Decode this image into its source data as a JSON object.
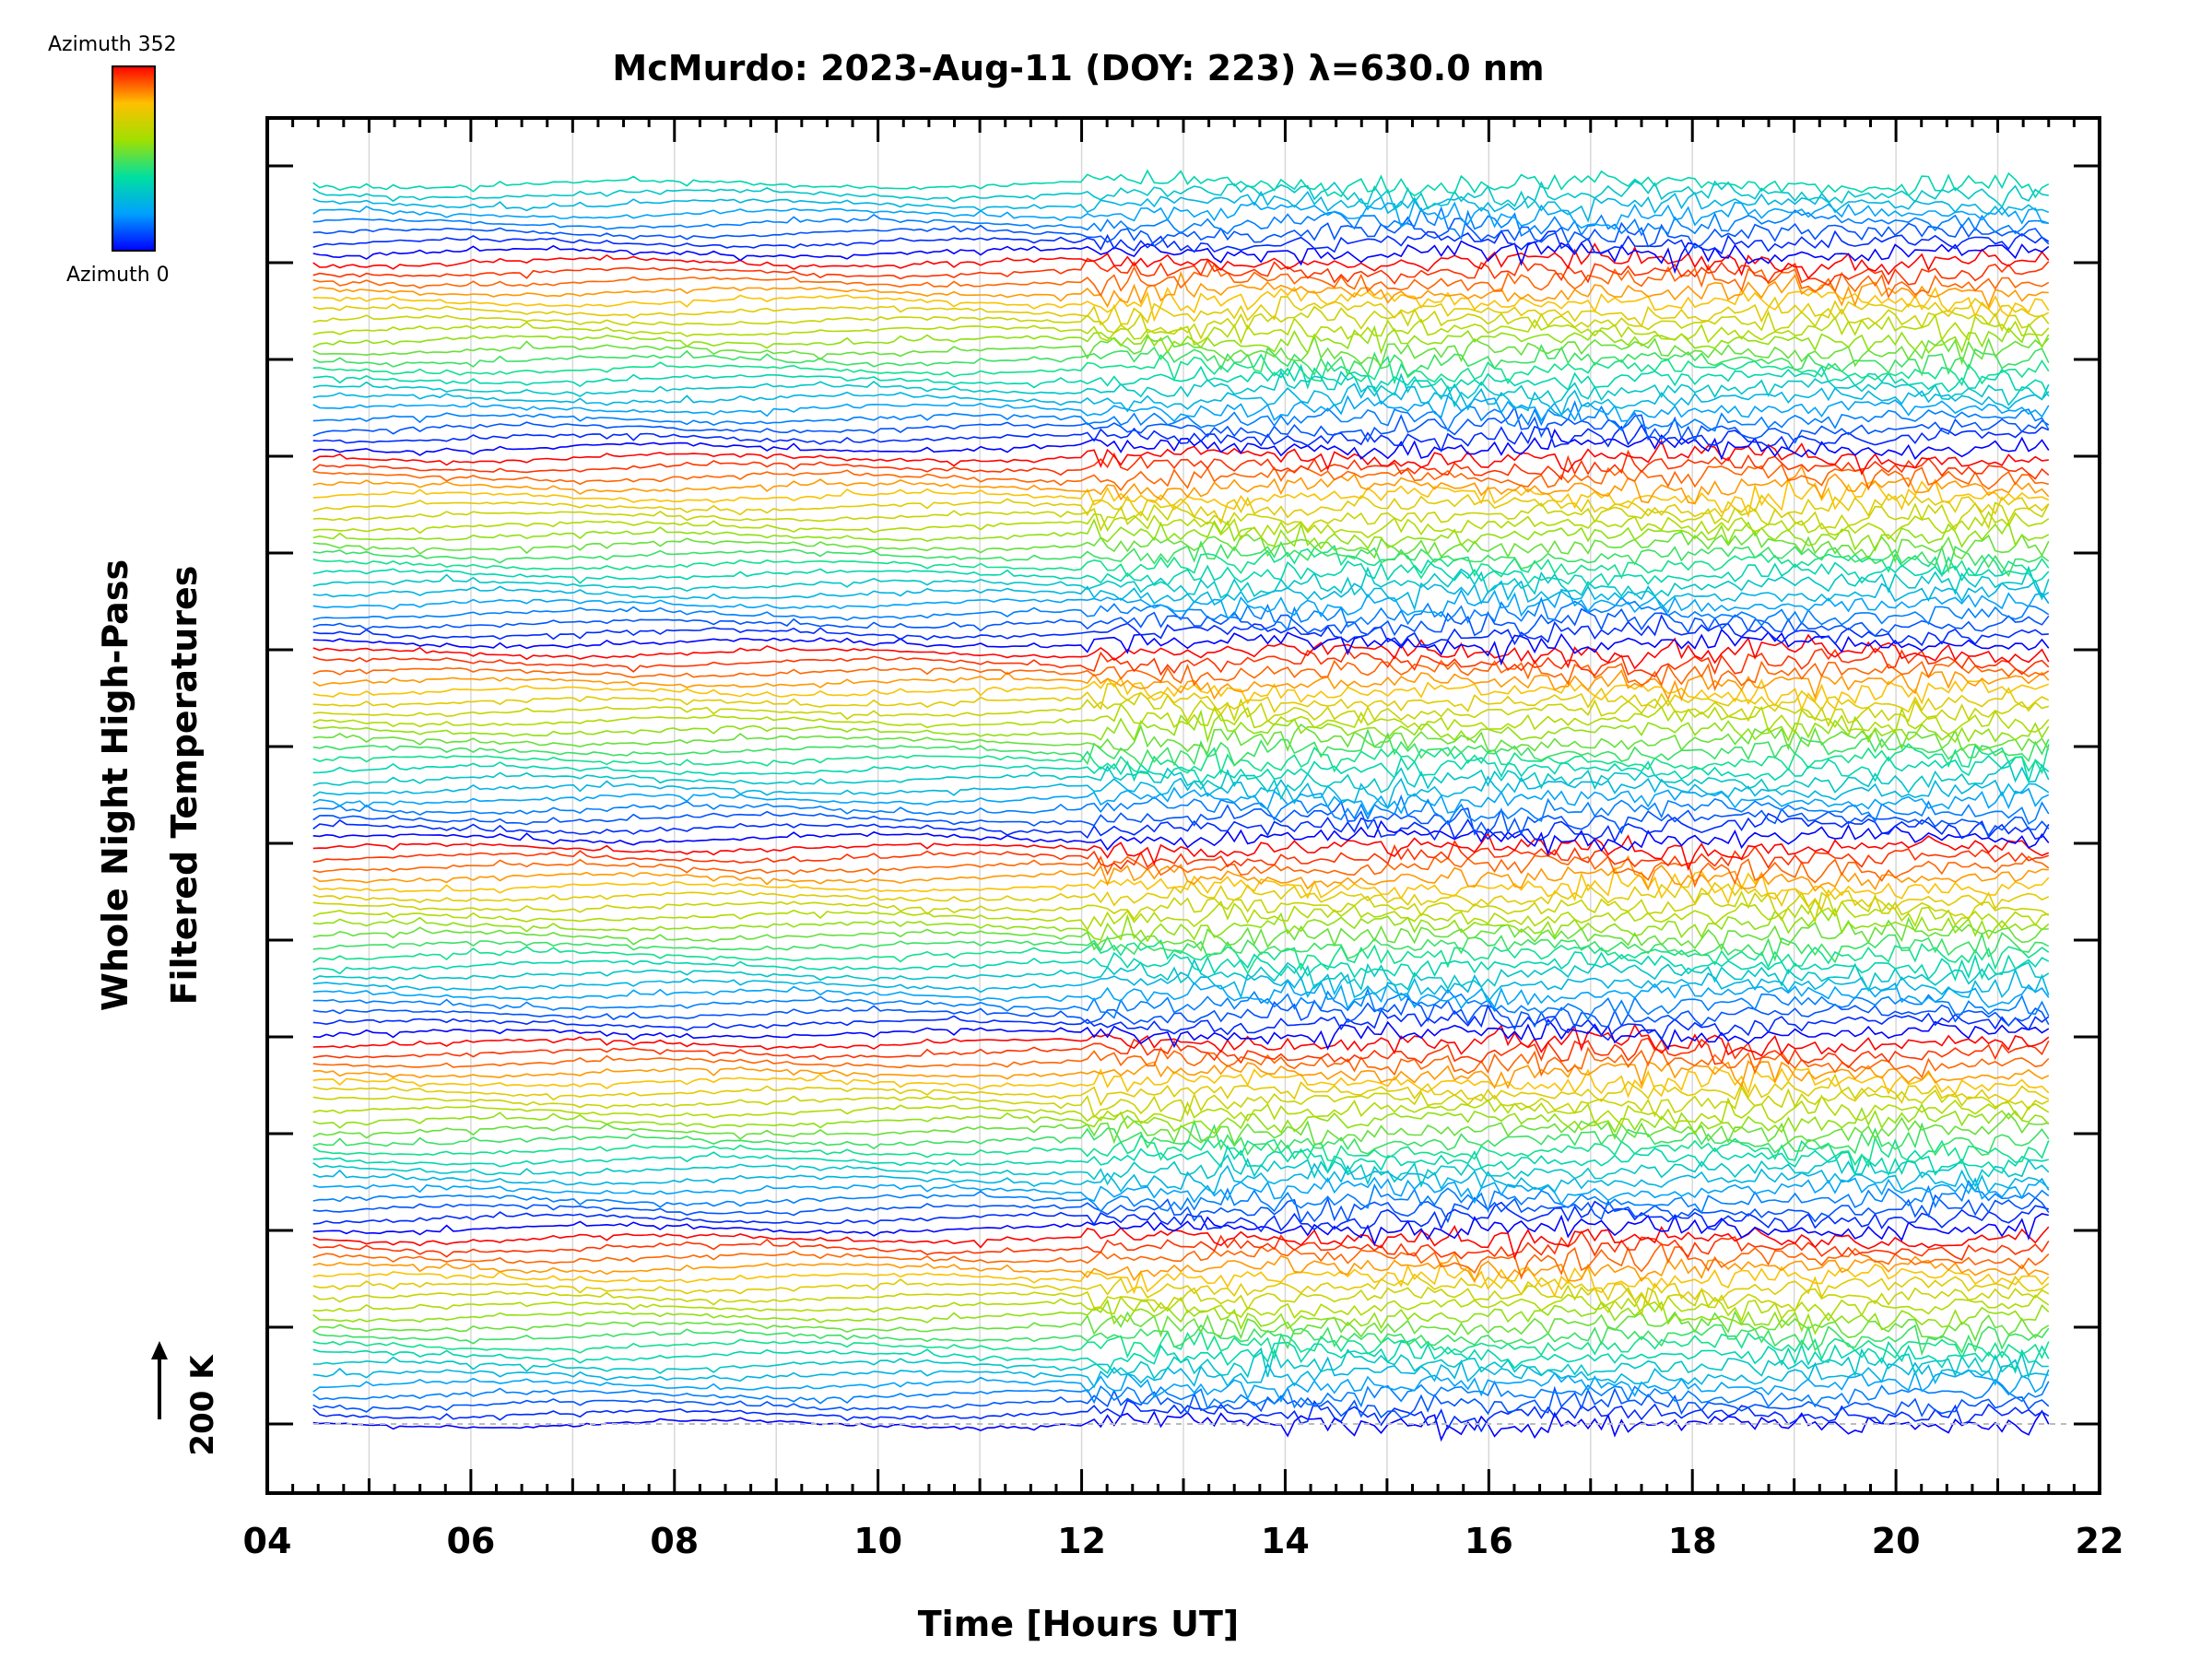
{
  "chart_data": {
    "type": "line",
    "title": "McMurdo: 2023-Aug-11 (DOY: 223) λ=630.0 nm",
    "xlabel": "Time [Hours UT]",
    "ylabel_line1": "Whole Night High-Pass",
    "ylabel_line2": "Filtered Temperatures",
    "scale_label": "200 K",
    "xlim": [
      4,
      22
    ],
    "x_ticks": [
      "04",
      "06",
      "08",
      "10",
      "12",
      "14",
      "16",
      "18",
      "20",
      "22"
    ],
    "x_tick_values": [
      4,
      6,
      8,
      10,
      12,
      14,
      16,
      18,
      20,
      22
    ],
    "data_time_range": [
      4.45,
      21.5
    ],
    "n_traces": 128,
    "traces_per_azimuth_cycle": 20,
    "offset_between_traces": "stacked (offset ~ 200 K per major tick marker)",
    "noise_increase_after_hour": 12,
    "colorbar": {
      "top_label": "Azimuth  352",
      "bottom_label": "Azimuth  0",
      "colors": [
        "#0000ff",
        "#00a0ff",
        "#00e0a0",
        "#a0e000",
        "#ffc000",
        "#ff0000"
      ]
    },
    "grid": "vertical gridlines each hour"
  }
}
